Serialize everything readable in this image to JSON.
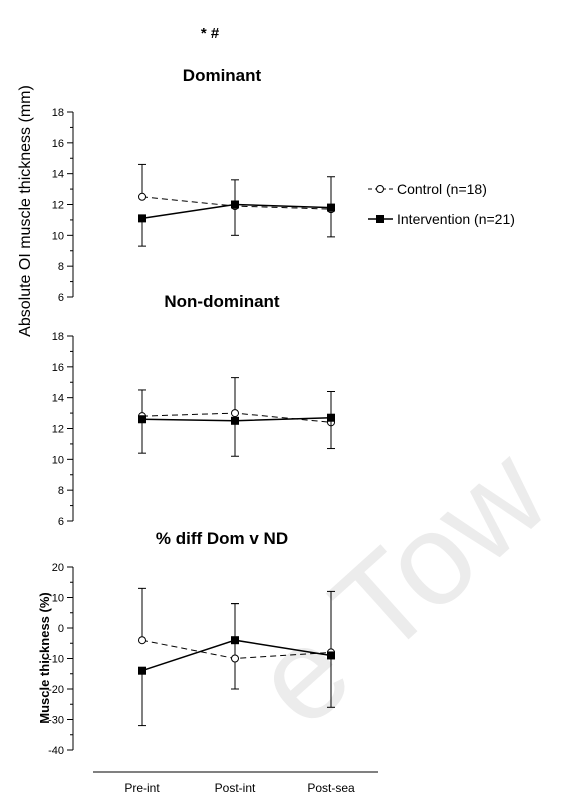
{
  "annotation": "* #",
  "watermark": "e Tow",
  "shared_ylabel": "Absolute OI muscle thickness (mm)",
  "legend": [
    {
      "label": "Control (n=18)",
      "marker": "open-circle",
      "line": "dashed"
    },
    {
      "label": "Intervention (n=21)",
      "marker": "filled-square",
      "line": "solid"
    }
  ],
  "colors": {
    "ink": "#000000",
    "open_fill": "#ffffff",
    "watermark": "#ececec"
  },
  "chart_data": [
    {
      "type": "line",
      "title": "Dominant",
      "categories": [
        "Pre-int",
        "Post-int",
        "Post-sea"
      ],
      "ylim": [
        6,
        18
      ],
      "yticks": [
        6,
        8,
        10,
        12,
        14,
        16,
        18
      ],
      "series": [
        {
          "name": "Control (n=18)",
          "values": [
            12.5,
            11.9,
            11.7
          ],
          "err_up": [
            2.1,
            1.7,
            2.1
          ],
          "err_down": [
            0,
            0,
            0
          ]
        },
        {
          "name": "Intervention (n=21)",
          "values": [
            11.1,
            12.0,
            11.8
          ],
          "err_up": [
            0,
            0,
            0
          ],
          "err_down": [
            1.8,
            2.0,
            1.9
          ]
        }
      ]
    },
    {
      "type": "line",
      "title": "Non-dominant",
      "categories": [
        "Pre-int",
        "Post-int",
        "Post-sea"
      ],
      "ylim": [
        6,
        18
      ],
      "yticks": [
        6,
        8,
        10,
        12,
        14,
        16,
        18
      ],
      "series": [
        {
          "name": "Control (n=18)",
          "values": [
            12.8,
            13.0,
            12.4
          ],
          "err_up": [
            1.7,
            2.3,
            2.0
          ],
          "err_down": [
            0,
            0,
            0
          ]
        },
        {
          "name": "Intervention (n=21)",
          "values": [
            12.6,
            12.5,
            12.7
          ],
          "err_up": [
            0,
            0,
            0
          ],
          "err_down": [
            2.2,
            2.3,
            2.0
          ]
        }
      ]
    },
    {
      "type": "line",
      "title": "% diff Dom v ND",
      "ylabel": "Muscle thickness (%)",
      "categories": [
        "Pre-int",
        "Post-int",
        "Post-sea"
      ],
      "ylim": [
        -40,
        20
      ],
      "yticks": [
        -40,
        -30,
        -20,
        -10,
        0,
        10,
        20
      ],
      "series": [
        {
          "name": "Control (n=18)",
          "values": [
            -4,
            -10,
            -8
          ],
          "err_up": [
            17,
            18,
            20
          ],
          "err_down": [
            0,
            10,
            0
          ]
        },
        {
          "name": "Intervention (n=21)",
          "values": [
            -14,
            -4,
            -9
          ],
          "err_up": [
            0,
            12,
            0
          ],
          "err_down": [
            18,
            0,
            17
          ]
        }
      ]
    }
  ]
}
